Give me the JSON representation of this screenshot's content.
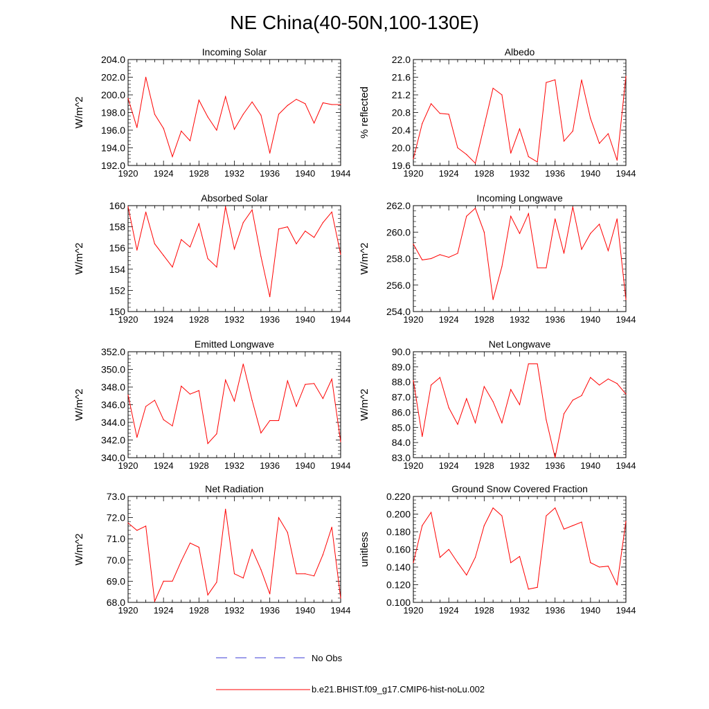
{
  "title": "NE China(40-50N,100-130E)",
  "legend": {
    "no_obs_label": "No Obs",
    "model_label": "b.e21.BHIST.f09_g17.CMIP6-hist-noLu.002",
    "no_obs_color": "#3b3bd6",
    "model_color": "#ff0000"
  },
  "colors": {
    "series": "#ff0000",
    "axis": "#000000"
  },
  "chart_data": [
    {
      "type": "line",
      "title": "Incoming Solar",
      "ylabel": "W/m^2",
      "xlim": [
        1920,
        1944
      ],
      "ylim": [
        192,
        204
      ],
      "xticks": [
        "1920",
        "1924",
        "1928",
        "1932",
        "1936",
        "1940",
        "1944"
      ],
      "yticks": [
        "192.0",
        "194.0",
        "196.0",
        "198.0",
        "200.0",
        "202.0",
        "204.0"
      ],
      "series": [
        {
          "x": [
            1920,
            1921,
            1922,
            1923,
            1924,
            1925,
            1926,
            1927,
            1928,
            1929,
            1930,
            1931,
            1932,
            1933,
            1934,
            1935,
            1936,
            1937,
            1938,
            1939,
            1940,
            1941,
            1942,
            1943,
            1944
          ],
          "values": [
            199.6,
            196.3,
            202.0,
            197.8,
            196.2,
            193.0,
            195.9,
            194.8,
            199.4,
            197.5,
            196.0,
            199.8,
            196.1,
            197.8,
            199.2,
            197.7,
            193.4,
            197.8,
            198.8,
            199.5,
            199.0,
            196.8,
            199.1,
            198.9,
            198.9
          ]
        }
      ]
    },
    {
      "type": "line",
      "title": "Albedo",
      "ylabel": "% reflected",
      "xlim": [
        1920,
        1944
      ],
      "ylim": [
        19.6,
        22.0
      ],
      "xticks": [
        "1920",
        "1924",
        "1928",
        "1932",
        "1936",
        "1940",
        "1944"
      ],
      "yticks": [
        "19.6",
        "20.0",
        "20.4",
        "20.8",
        "21.2",
        "21.6",
        "22.0"
      ],
      "series": [
        {
          "x": [
            1920,
            1921,
            1922,
            1923,
            1924,
            1925,
            1926,
            1927,
            1928,
            1929,
            1930,
            1931,
            1932,
            1933,
            1934,
            1935,
            1936,
            1937,
            1938,
            1939,
            1940,
            1941,
            1942,
            1943,
            1944
          ],
          "values": [
            19.75,
            20.55,
            21.0,
            20.78,
            20.76,
            20.0,
            19.85,
            19.65,
            20.5,
            21.35,
            21.2,
            19.88,
            20.43,
            19.8,
            19.68,
            21.48,
            21.54,
            20.15,
            20.38,
            21.54,
            20.67,
            20.1,
            20.32,
            19.72,
            21.62
          ]
        }
      ]
    },
    {
      "type": "line",
      "title": "Absorbed Solar",
      "ylabel": "W/m^2",
      "xlim": [
        1920,
        1944
      ],
      "ylim": [
        150,
        160
      ],
      "xticks": [
        "1920",
        "1924",
        "1928",
        "1932",
        "1936",
        "1940",
        "1944"
      ],
      "yticks": [
        "150",
        "152",
        "154",
        "156",
        "158",
        "160"
      ],
      "series": [
        {
          "x": [
            1920,
            1921,
            1922,
            1923,
            1924,
            1925,
            1926,
            1927,
            1928,
            1929,
            1930,
            1931,
            1932,
            1933,
            1934,
            1935,
            1936,
            1937,
            1938,
            1939,
            1940,
            1941,
            1942,
            1943,
            1944
          ],
          "values": [
            159.9,
            155.8,
            159.4,
            156.4,
            155.3,
            154.2,
            156.8,
            156.1,
            158.3,
            155.0,
            154.2,
            159.9,
            155.9,
            158.4,
            159.6,
            155.2,
            151.4,
            157.8,
            158.0,
            156.4,
            157.6,
            157.0,
            158.4,
            159.4,
            155.4
          ]
        }
      ]
    },
    {
      "type": "line",
      "title": "Incoming Longwave",
      "ylabel": "W/m^2",
      "xlim": [
        1920,
        1944
      ],
      "ylim": [
        254,
        262
      ],
      "xticks": [
        "1920",
        "1924",
        "1928",
        "1932",
        "1936",
        "1940",
        "1944"
      ],
      "yticks": [
        "254.0",
        "256.0",
        "258.0",
        "260.0",
        "262.0"
      ],
      "series": [
        {
          "x": [
            1920,
            1921,
            1922,
            1923,
            1924,
            1925,
            1926,
            1927,
            1928,
            1929,
            1930,
            1931,
            1932,
            1933,
            1934,
            1935,
            1936,
            1937,
            1938,
            1939,
            1940,
            1941,
            1942,
            1943,
            1944
          ],
          "values": [
            259.1,
            257.9,
            258.0,
            258.3,
            258.1,
            258.4,
            261.2,
            261.8,
            260.0,
            254.9,
            257.4,
            261.2,
            259.9,
            261.4,
            257.3,
            257.3,
            261.0,
            258.4,
            261.9,
            258.7,
            259.9,
            260.6,
            258.6,
            261.0,
            254.9
          ]
        }
      ]
    },
    {
      "type": "line",
      "title": "Emitted Longwave",
      "ylabel": "W/m^2",
      "xlim": [
        1920,
        1944
      ],
      "ylim": [
        340,
        352
      ],
      "xticks": [
        "1920",
        "1924",
        "1928",
        "1932",
        "1936",
        "1940",
        "1944"
      ],
      "yticks": [
        "340.0",
        "342.0",
        "344.0",
        "346.0",
        "348.0",
        "350.0",
        "352.0"
      ],
      "series": [
        {
          "x": [
            1920,
            1921,
            1922,
            1923,
            1924,
            1925,
            1926,
            1927,
            1928,
            1929,
            1930,
            1931,
            1932,
            1933,
            1934,
            1935,
            1936,
            1937,
            1938,
            1939,
            1940,
            1941,
            1942,
            1943,
            1944
          ],
          "values": [
            347.1,
            342.3,
            345.8,
            346.5,
            344.3,
            343.6,
            348.1,
            347.2,
            347.6,
            341.6,
            342.7,
            348.8,
            346.4,
            350.6,
            346.5,
            342.8,
            344.2,
            344.2,
            348.7,
            345.8,
            348.3,
            348.4,
            346.7,
            348.9,
            341.8
          ]
        }
      ]
    },
    {
      "type": "line",
      "title": "Net Longwave",
      "ylabel": "W/m^2",
      "xlim": [
        1920,
        1944
      ],
      "ylim": [
        83,
        90
      ],
      "xticks": [
        "1920",
        "1924",
        "1928",
        "1932",
        "1936",
        "1940",
        "1944"
      ],
      "yticks": [
        "83.0",
        "84.0",
        "85.0",
        "86.0",
        "87.0",
        "88.0",
        "89.0",
        "90.0"
      ],
      "series": [
        {
          "x": [
            1920,
            1921,
            1922,
            1923,
            1924,
            1925,
            1926,
            1927,
            1928,
            1929,
            1930,
            1931,
            1932,
            1933,
            1934,
            1935,
            1936,
            1937,
            1938,
            1939,
            1940,
            1941,
            1942,
            1943,
            1944
          ],
          "values": [
            88.1,
            84.4,
            87.8,
            88.3,
            86.3,
            85.2,
            86.9,
            85.3,
            87.7,
            86.7,
            85.3,
            87.5,
            86.5,
            89.2,
            89.2,
            85.5,
            83.0,
            85.9,
            86.8,
            87.1,
            88.3,
            87.8,
            88.2,
            87.9,
            87.2
          ]
        }
      ]
    },
    {
      "type": "line",
      "title": "Net Radiation",
      "ylabel": "W/m^2",
      "xlim": [
        1920,
        1944
      ],
      "ylim": [
        68,
        73
      ],
      "xticks": [
        "1920",
        "1924",
        "1928",
        "1932",
        "1936",
        "1940",
        "1944"
      ],
      "yticks": [
        "68.0",
        "69.0",
        "70.0",
        "71.0",
        "72.0",
        "73.0"
      ],
      "series": [
        {
          "x": [
            1920,
            1921,
            1922,
            1923,
            1924,
            1925,
            1926,
            1927,
            1928,
            1929,
            1930,
            1931,
            1932,
            1933,
            1934,
            1935,
            1936,
            1937,
            1938,
            1939,
            1940,
            1941,
            1942,
            1943,
            1944
          ],
          "values": [
            71.75,
            71.4,
            71.6,
            68.05,
            69.0,
            69.0,
            69.95,
            70.8,
            70.6,
            68.35,
            68.95,
            72.4,
            69.35,
            69.15,
            70.5,
            69.55,
            68.4,
            72.0,
            71.3,
            69.35,
            69.35,
            69.25,
            70.25,
            71.55,
            68.2
          ]
        }
      ]
    },
    {
      "type": "line",
      "title": "Ground Snow Covered Fraction",
      "ylabel": "unitless",
      "xlim": [
        1920,
        1944
      ],
      "ylim": [
        0.1,
        0.22
      ],
      "xticks": [
        "1920",
        "1924",
        "1928",
        "1932",
        "1936",
        "1940",
        "1944"
      ],
      "yticks": [
        "0.100",
        "0.120",
        "0.140",
        "0.160",
        "0.180",
        "0.200",
        "0.220"
      ],
      "series": [
        {
          "x": [
            1920,
            1921,
            1922,
            1923,
            1924,
            1925,
            1926,
            1927,
            1928,
            1929,
            1930,
            1931,
            1932,
            1933,
            1934,
            1935,
            1936,
            1937,
            1938,
            1939,
            1940,
            1941,
            1942,
            1943,
            1944
          ],
          "values": [
            0.145,
            0.187,
            0.202,
            0.151,
            0.16,
            0.145,
            0.131,
            0.151,
            0.187,
            0.207,
            0.198,
            0.145,
            0.152,
            0.115,
            0.117,
            0.198,
            0.207,
            0.183,
            0.187,
            0.191,
            0.145,
            0.14,
            0.141,
            0.12,
            0.192
          ]
        }
      ]
    }
  ]
}
